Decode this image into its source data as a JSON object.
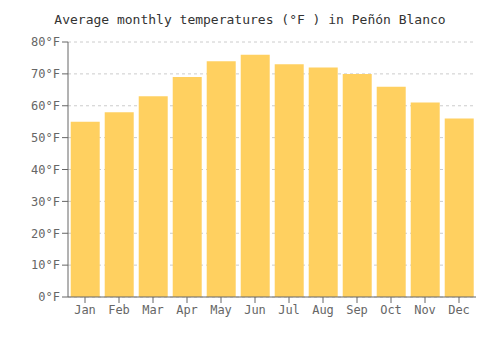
{
  "chart_data": {
    "type": "bar",
    "title": "Average monthly temperatures (°F ) in Peñón Blanco",
    "categories": [
      "Jan",
      "Feb",
      "Mar",
      "Apr",
      "May",
      "Jun",
      "Jul",
      "Aug",
      "Sep",
      "Oct",
      "Nov",
      "Dec"
    ],
    "values": [
      55,
      58,
      63,
      69,
      74,
      76,
      73,
      72,
      70,
      66,
      61,
      56
    ],
    "color": "#FFD060",
    "ylim": [
      0,
      80
    ],
    "yticks": [
      {
        "value": 0,
        "label": "0°F"
      },
      {
        "value": 10,
        "label": "10°F"
      },
      {
        "value": 20,
        "label": "20°F"
      },
      {
        "value": 30,
        "label": "30°F"
      },
      {
        "value": 40,
        "label": "40°F"
      },
      {
        "value": 50,
        "label": "50°F"
      },
      {
        "value": 60,
        "label": "60°F"
      },
      {
        "value": 70,
        "label": "70°F"
      },
      {
        "value": 80,
        "label": "80°F"
      }
    ],
    "grid": true
  }
}
